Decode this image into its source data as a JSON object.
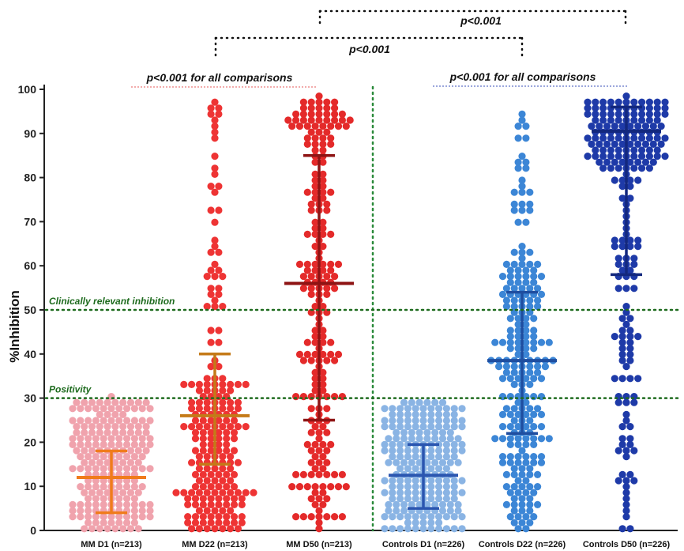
{
  "chart_data": {
    "type": "scatter",
    "ylabel": "%Inhibition",
    "ylim": [
      0,
      100
    ],
    "yticks": [
      0,
      10,
      20,
      30,
      40,
      50,
      60,
      70,
      80,
      90,
      100
    ],
    "grid": false,
    "categories": [
      "MM D1 (n=213)",
      "MM D22 (n=213)",
      "MM D50 (n=213)",
      "Controls D1 (n=226)",
      "Controls D22 (n=226)",
      "Controls D50 (n=226)"
    ],
    "groups": [
      {
        "name": "MM D1 (n=213)",
        "n": 213,
        "min": 0,
        "max": 30,
        "median": 12,
        "q1": 4,
        "q3": 18,
        "point_color": "#f0a3ad",
        "bar_color": "#f07c1c"
      },
      {
        "name": "MM D22 (n=213)",
        "n": 213,
        "min": 0,
        "max": 98,
        "median": 26,
        "q1": 15,
        "q3": 40,
        "point_color": "#ee3434",
        "bar_color": "#c47a18"
      },
      {
        "name": "MM D50 (n=213)",
        "n": 213,
        "min": 0,
        "max": 98,
        "median": 56,
        "q1": 25,
        "q3": 85,
        "point_color": "#e42a2a",
        "bar_color": "#8e1414"
      },
      {
        "name": "Controls D1 (n=226)",
        "n": 226,
        "min": 0,
        "max": 29,
        "median": 12.5,
        "q1": 5,
        "q3": 19.5,
        "point_color": "#8ab4e4",
        "bar_color": "#2b56b0"
      },
      {
        "name": "Controls D22 (n=226)",
        "n": 226,
        "min": 0,
        "max": 98,
        "median": 38.5,
        "q1": 22,
        "q3": 54,
        "point_color": "#3c86d6",
        "bar_color": "#1f4ea0"
      },
      {
        "name": "Controls D50 (n=226)",
        "n": 226,
        "min": 0,
        "max": 98,
        "median": 90.5,
        "q1": 58,
        "q3": 96,
        "point_color": "#1e3aa8",
        "bar_color": "#13287e"
      }
    ],
    "reference_lines": [
      {
        "y": 50,
        "label": "Clinically relevant inhibition",
        "color": "#1e6b1e"
      },
      {
        "y": 30,
        "label": "Positivity",
        "color": "#1e6b1e"
      }
    ],
    "annotations": [
      {
        "text": "p<0.001 for all comparisons",
        "groups": [
          0,
          2
        ],
        "color": "#e45a5a"
      },
      {
        "text": "p<0.001 for all comparisons",
        "groups": [
          3,
          5
        ],
        "color": "#3a4fb8"
      },
      {
        "text": "p<0.001",
        "groups": [
          1,
          4
        ],
        "color": "#111111"
      },
      {
        "text": "p<0.001",
        "groups": [
          2,
          5
        ],
        "color": "#111111"
      }
    ]
  }
}
